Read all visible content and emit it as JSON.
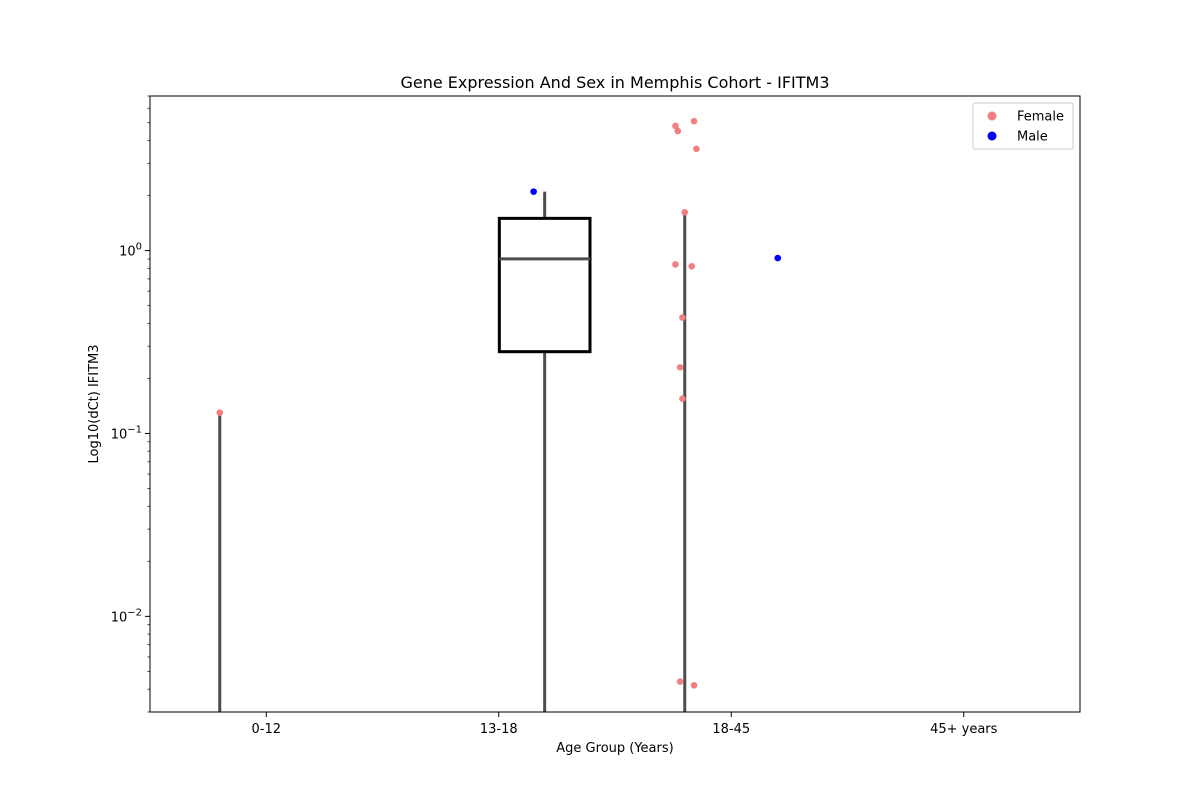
{
  "chart_data": {
    "type": "box",
    "title": "Gene Expression And Sex in Memphis Cohort - IFITM3",
    "xlabel": "Age Group (Years)",
    "ylabel": "Log10(dCt) IFITM3",
    "yscale": "log",
    "ylim": [
      0.003,
      7
    ],
    "categories": [
      "0-12",
      "13-18",
      "18-45",
      "45+ years"
    ],
    "y_ticks": [
      {
        "value": 0.01,
        "base": "10",
        "exp": "−2"
      },
      {
        "value": 0.1,
        "base": "10",
        "exp": "−1"
      },
      {
        "value": 1,
        "base": "10",
        "exp": "0"
      }
    ],
    "legend": {
      "position": "top-right",
      "entries": [
        {
          "label": "Female",
          "color": "#f08080"
        },
        {
          "label": "Male",
          "color": "#0000ff"
        }
      ]
    },
    "boxes": [
      {
        "category": "13-18",
        "q1": 0.28,
        "median": 0.9,
        "q3": 1.5,
        "whisker_low": 0.003,
        "whisker_high": 2.1
      }
    ],
    "whisker_lines": [
      {
        "category": "0-12",
        "low": 0.003,
        "high": 0.13
      },
      {
        "category": "18-45",
        "low": 0.003,
        "high": 1.6
      }
    ],
    "series": [
      {
        "name": "Female",
        "color": "#f08080",
        "points": [
          {
            "category": "0-12",
            "offset": -0.2,
            "y": 0.13
          },
          {
            "category": "18-45",
            "offset": -0.24,
            "y": 4.8
          },
          {
            "category": "18-45",
            "offset": -0.23,
            "y": 4.5
          },
          {
            "category": "18-45",
            "offset": -0.16,
            "y": 5.1
          },
          {
            "category": "18-45",
            "offset": -0.15,
            "y": 3.6
          },
          {
            "category": "18-45",
            "offset": -0.2,
            "y": 1.62
          },
          {
            "category": "18-45",
            "offset": -0.24,
            "y": 0.84
          },
          {
            "category": "18-45",
            "offset": -0.17,
            "y": 0.82
          },
          {
            "category": "18-45",
            "offset": -0.21,
            "y": 0.43
          },
          {
            "category": "18-45",
            "offset": -0.22,
            "y": 0.23
          },
          {
            "category": "18-45",
            "offset": -0.21,
            "y": 0.155
          },
          {
            "category": "18-45",
            "offset": -0.22,
            "y": 0.0044
          },
          {
            "category": "18-45",
            "offset": -0.16,
            "y": 0.0042
          }
        ]
      },
      {
        "name": "Male",
        "color": "#0000ff",
        "points": [
          {
            "category": "13-18",
            "offset": 0.15,
            "y": 2.1
          },
          {
            "category": "18-45",
            "offset": 0.2,
            "y": 0.91
          }
        ]
      }
    ]
  }
}
